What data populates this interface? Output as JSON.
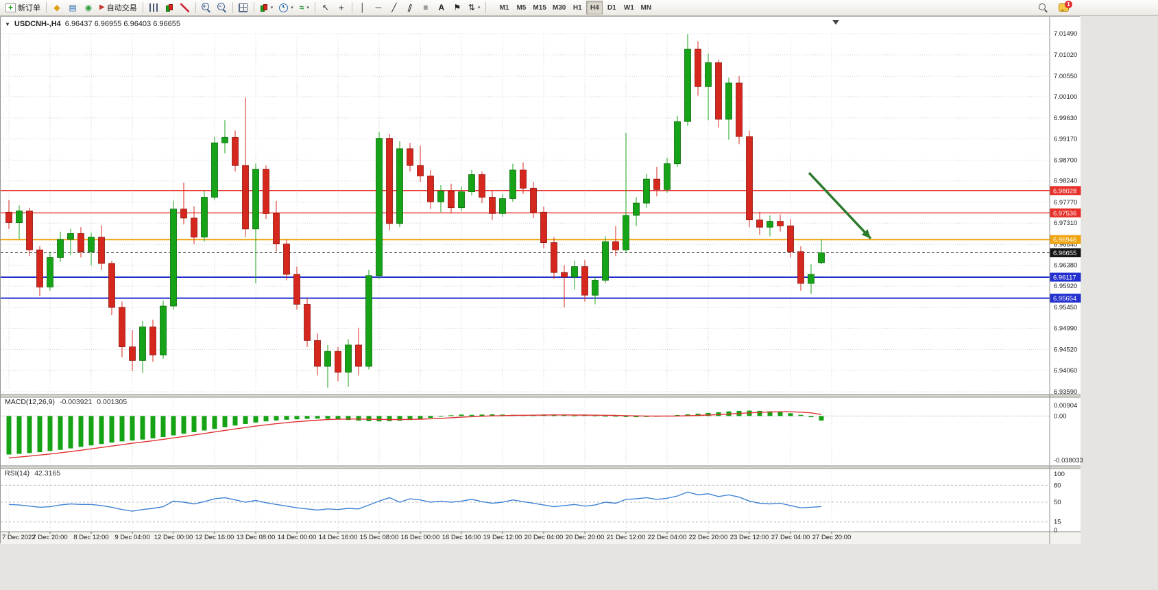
{
  "toolbar": {
    "new_order_label": "新订单",
    "autotrade_label": "自动交易",
    "timeframes": [
      "M1",
      "M5",
      "M15",
      "M30",
      "H1",
      "H4",
      "D1",
      "W1",
      "MN"
    ],
    "active_timeframe": "H4",
    "notification_count": "1"
  },
  "icons": {
    "collapse": "▼",
    "caret": "▾",
    "profile": "◆",
    "market_watch": "▤",
    "navigator": "◉",
    "autotrading": "▶",
    "cursor": "↖",
    "crosshair": "+",
    "vline": "│",
    "hline": "─",
    "trendline": "╱",
    "channel": "∥",
    "fibonacci": "≡",
    "text": "A",
    "label": "⚑",
    "arrows": "⇅",
    "indicators": "≈",
    "zoom_in": "+",
    "zoom_out": "−",
    "new_order_plus": "+"
  },
  "chart": {
    "title": "USDCNH-,H4",
    "ohlc_text": "6.96437 6.96955 6.96403 6.96655",
    "price_scale": [
      "7.01490",
      "7.01020",
      "7.00550",
      "7.00100",
      "6.99630",
      "6.99170",
      "6.98700",
      "6.98240",
      "6.97770",
      "6.97310",
      "6.96840",
      "6.96380",
      "6.95920",
      "6.95450",
      "6.94990",
      "6.94520",
      "6.94060",
      "6.93590"
    ],
    "levels": [
      {
        "label": "6.98028",
        "value": 6.98028,
        "color": "#e8302a",
        "width": 1.4,
        "style": "solid"
      },
      {
        "label": "6.97536",
        "value": 6.97536,
        "color": "#e8302a",
        "width": 1.4,
        "style": "solid"
      },
      {
        "label": "6.96946",
        "value": 6.96946,
        "color": "#efa30d",
        "width": 2,
        "style": "solid"
      },
      {
        "label": "6.96655",
        "value": 6.96655,
        "color": "#151515",
        "width": 1,
        "style": "dashed"
      },
      {
        "label": "6.96117",
        "value": 6.96117,
        "color": "#2330cf",
        "width": 2,
        "style": "solid"
      },
      {
        "label": "6.95654",
        "value": 6.95654,
        "color": "#2330cf",
        "width": 2,
        "style": "solid"
      }
    ],
    "colors": {
      "up": "#17a317",
      "up_edge": "#0b6b0b",
      "down": "#d5271d",
      "down_edge": "#8d170f",
      "grid": "#d6d6d6",
      "axis_text": "#1c1c1c"
    },
    "annotation": {
      "type": "arrow",
      "x1_candle": 77.8,
      "price1": 6.9842,
      "x2_candle": 83.8,
      "price2": 6.9697,
      "color": "#2c7a2c"
    }
  },
  "chart_data": {
    "type": "candlestick",
    "symbol": "USDCNH-",
    "period": "H4",
    "ylim": [
      6.9359,
      7.0149
    ],
    "label_every": 4,
    "time_labels": [
      "7 Dec 2022",
      "7 Dec 20:00",
      "8 Dec 12:00",
      "9 Dec 04:00",
      "12 Dec 00:00",
      "12 Dec 16:00",
      "13 Dec 08:00",
      "14 Dec 00:00",
      "14 Dec 16:00",
      "15 Dec 08:00",
      "16 Dec 00:00",
      "16 Dec 16:00",
      "19 Dec 12:00",
      "20 Dec 04:00",
      "20 Dec 20:00",
      "21 Dec 12:00",
      "22 Dec 04:00",
      "22 Dec 20:00",
      "23 Dec 12:00",
      "27 Dec 04:00",
      "27 Dec 20:00"
    ],
    "candles": [
      [
        6.9755,
        6.9782,
        6.9718,
        6.9732
      ],
      [
        6.9732,
        6.977,
        6.9696,
        6.9758
      ],
      [
        6.9758,
        6.9765,
        6.9658,
        6.9672
      ],
      [
        6.9672,
        6.968,
        6.957,
        6.959
      ],
      [
        6.959,
        6.9668,
        6.9582,
        6.9655
      ],
      [
        6.9655,
        6.9712,
        6.9645,
        6.9695
      ],
      [
        6.9695,
        6.9718,
        6.966,
        6.9708
      ],
      [
        6.9708,
        6.9722,
        6.9655,
        6.9668
      ],
      [
        6.9668,
        6.971,
        6.9638,
        6.97
      ],
      [
        6.97,
        6.9726,
        6.9628,
        6.9642
      ],
      [
        6.9642,
        6.9648,
        6.9528,
        6.9545
      ],
      [
        6.9545,
        6.9558,
        6.9435,
        6.9458
      ],
      [
        6.9458,
        6.9495,
        6.9405,
        6.9428
      ],
      [
        6.9428,
        6.9515,
        6.94,
        6.9502
      ],
      [
        6.9502,
        6.9518,
        6.9425,
        6.944
      ],
      [
        6.944,
        6.956,
        6.9432,
        6.9548
      ],
      [
        6.9548,
        6.978,
        6.954,
        6.9762
      ],
      [
        6.9762,
        6.982,
        6.9728,
        6.9742
      ],
      [
        6.9742,
        6.9768,
        6.9685,
        6.97
      ],
      [
        6.97,
        6.9802,
        6.969,
        6.9788
      ],
      [
        6.9788,
        6.9922,
        6.9782,
        6.9908
      ],
      [
        6.9908,
        6.9958,
        6.9885,
        6.992
      ],
      [
        6.992,
        6.9935,
        6.9845,
        6.9858
      ],
      [
        6.9858,
        7.0008,
        6.97,
        6.9718
      ],
      [
        6.9718,
        6.9862,
        6.9598,
        6.985
      ],
      [
        6.985,
        6.9858,
        6.974,
        6.9752
      ],
      [
        6.9752,
        6.978,
        6.9668,
        6.9685
      ],
      [
        6.9685,
        6.9695,
        6.9605,
        6.9618
      ],
      [
        6.9618,
        6.9635,
        6.954,
        6.9552
      ],
      [
        6.9552,
        6.9565,
        6.9458,
        6.9472
      ],
      [
        6.9472,
        6.9488,
        6.9395,
        6.9415
      ],
      [
        6.9415,
        6.9462,
        6.9368,
        6.9448
      ],
      [
        6.9448,
        6.9458,
        6.9382,
        6.9402
      ],
      [
        6.9402,
        6.9475,
        6.937,
        6.9462
      ],
      [
        6.9462,
        6.95,
        6.9395,
        6.9415
      ],
      [
        6.9415,
        6.9628,
        6.9408,
        6.9615
      ],
      [
        6.9615,
        6.9932,
        6.9608,
        6.9918
      ],
      [
        6.9918,
        6.9928,
        6.9715,
        6.973
      ],
      [
        6.973,
        6.9912,
        6.9722,
        6.9895
      ],
      [
        6.9895,
        6.9908,
        6.9845,
        6.9858
      ],
      [
        6.9858,
        6.9902,
        6.9822,
        6.9835
      ],
      [
        6.9835,
        6.9848,
        6.9762,
        6.9778
      ],
      [
        6.9778,
        6.9815,
        6.9755,
        6.9802
      ],
      [
        6.9802,
        6.9818,
        6.9752,
        6.9765
      ],
      [
        6.9765,
        6.9812,
        6.9758,
        6.98
      ],
      [
        6.98,
        6.9848,
        6.9792,
        6.9838
      ],
      [
        6.9838,
        6.9845,
        6.9775,
        6.9788
      ],
      [
        6.9788,
        6.9802,
        6.9738,
        6.9752
      ],
      [
        6.9752,
        6.9795,
        6.9745,
        6.9785
      ],
      [
        6.9785,
        6.9862,
        6.9778,
        6.9848
      ],
      [
        6.9848,
        6.9865,
        6.9795,
        6.9808
      ],
      [
        6.9808,
        6.9822,
        6.9742,
        6.9755
      ],
      [
        6.9755,
        6.9768,
        6.9675,
        6.9688
      ],
      [
        6.9688,
        6.97,
        6.9608,
        6.9622
      ],
      [
        6.9622,
        6.9638,
        6.9545,
        6.9612
      ],
      [
        6.9612,
        6.9648,
        6.9585,
        6.9635
      ],
      [
        6.9635,
        6.965,
        6.9558,
        6.9572
      ],
      [
        6.9572,
        6.9612,
        6.9552,
        6.9605
      ],
      [
        6.9605,
        6.9702,
        6.9598,
        6.969
      ],
      [
        6.969,
        6.9725,
        6.9658,
        6.9672
      ],
      [
        6.9672,
        6.993,
        6.9665,
        6.9748
      ],
      [
        6.9748,
        6.9788,
        6.9725,
        6.9775
      ],
      [
        6.9775,
        6.984,
        6.9765,
        6.9828
      ],
      [
        6.9828,
        6.9855,
        6.979,
        6.9805
      ],
      [
        6.9805,
        6.9875,
        6.9798,
        6.9862
      ],
      [
        6.9862,
        6.9968,
        6.9855,
        6.9955
      ],
      [
        6.9955,
        7.0148,
        6.9945,
        7.0115
      ],
      [
        7.0115,
        7.0132,
        7.0012,
        7.0032
      ],
      [
        7.0032,
        7.0105,
        6.9958,
        7.0085
      ],
      [
        7.0085,
        7.0092,
        6.9942,
        6.996
      ],
      [
        6.996,
        7.0052,
        6.9915,
        7.004
      ],
      [
        7.004,
        7.0055,
        6.9905,
        6.9922
      ],
      [
        6.9922,
        6.9935,
        6.9722,
        6.9738
      ],
      [
        6.9738,
        6.9756,
        6.9705,
        6.9722
      ],
      [
        6.9722,
        6.9748,
        6.9702,
        6.9735
      ],
      [
        6.9735,
        6.975,
        6.9712,
        6.9725
      ],
      [
        6.9725,
        6.974,
        6.9655,
        6.9668
      ],
      [
        6.9668,
        6.968,
        6.9582,
        6.9598
      ],
      [
        6.9598,
        6.964,
        6.9575,
        6.9618
      ],
      [
        6.96437,
        6.96955,
        6.96403,
        6.96655
      ]
    ]
  },
  "indicators": {
    "macd": {
      "name": "MACD(12,26,9)",
      "value": "-0.003921",
      "signal_value": "0.001305",
      "scale": [
        "0.00904",
        "0.00",
        "-0.038033"
      ],
      "range": [
        -0.038033,
        0.00904
      ],
      "histogram_color": "#15a315",
      "signal_color": "#e03131",
      "histogram": [
        -0.033,
        -0.0325,
        -0.0318,
        -0.031,
        -0.03,
        -0.029,
        -0.0278,
        -0.0265,
        -0.0252,
        -0.024,
        -0.0228,
        -0.0218,
        -0.021,
        -0.0202,
        -0.0192,
        -0.018,
        -0.0166,
        -0.0152,
        -0.0138,
        -0.0124,
        -0.011,
        -0.0096,
        -0.0082,
        -0.0068,
        -0.0056,
        -0.0046,
        -0.0038,
        -0.0032,
        -0.0028,
        -0.0024,
        -0.0022,
        -0.0024,
        -0.0028,
        -0.0034,
        -0.004,
        -0.0044,
        -0.0046,
        -0.0044,
        -0.004,
        -0.0034,
        -0.0026,
        -0.0016,
        -0.0006,
        0.0006,
        0.0012,
        0.001,
        0.0012,
        0.0014,
        0.0012,
        0.001,
        0.0008,
        0.001,
        0.0012,
        0.001,
        0.0006,
        0.0004,
        0.0006,
        0.0004,
        0.0,
        -0.0004,
        -0.0008,
        -0.001,
        -0.0008,
        -0.0004,
        0.0002,
        0.0008,
        0.0014,
        0.002,
        0.0026,
        0.0032,
        0.004,
        0.0044,
        0.0046,
        0.0044,
        0.004,
        0.0034,
        0.0024,
        0.001,
        -0.001,
        -0.0039
      ],
      "signal": [
        -0.036,
        -0.0352,
        -0.0344,
        -0.0335,
        -0.0326,
        -0.0316,
        -0.0305,
        -0.0294,
        -0.0282,
        -0.027,
        -0.0258,
        -0.0246,
        -0.0234,
        -0.0223,
        -0.0212,
        -0.02,
        -0.0188,
        -0.0176,
        -0.0163,
        -0.015,
        -0.0137,
        -0.0124,
        -0.0111,
        -0.0099,
        -0.0087,
        -0.0076,
        -0.0066,
        -0.0057,
        -0.0049,
        -0.0042,
        -0.0036,
        -0.0031,
        -0.0028,
        -0.0026,
        -0.0026,
        -0.0027,
        -0.0029,
        -0.003,
        -0.003,
        -0.0029,
        -0.0027,
        -0.0024,
        -0.002,
        -0.0015,
        -0.001,
        -0.0006,
        -0.0002,
        0.0001,
        0.0003,
        0.0005,
        0.0006,
        0.0007,
        0.0008,
        0.0009,
        0.0009,
        0.0008,
        0.0008,
        0.0007,
        0.0006,
        0.0005,
        0.0003,
        0.0001,
        0.0,
        -0.0001,
        -0.0001,
        0.0,
        0.0002,
        0.0005,
        0.0008,
        0.0012,
        0.0017,
        0.0022,
        0.0027,
        0.0031,
        0.0034,
        0.0036,
        0.0036,
        0.0033,
        0.0027,
        0.0013
      ]
    },
    "rsi": {
      "name": "RSI(14)",
      "value": "42.3165",
      "scale": [
        "100",
        "80",
        "50",
        "15",
        "0"
      ],
      "levels": [
        80,
        50,
        15
      ],
      "range": [
        0,
        100
      ],
      "color": "#3e82d2",
      "values": [
        46,
        45,
        43,
        41,
        42,
        45,
        47,
        46,
        46,
        44,
        41,
        37,
        34,
        37,
        39,
        42,
        52,
        50,
        47,
        51,
        56,
        58,
        54,
        50,
        53,
        49,
        46,
        43,
        40,
        38,
        36,
        38,
        37,
        39,
        38,
        45,
        52,
        58,
        50,
        56,
        54,
        50,
        52,
        50,
        52,
        55,
        51,
        48,
        50,
        54,
        51,
        48,
        45,
        42,
        44,
        46,
        43,
        45,
        50,
        48,
        55,
        56,
        58,
        55,
        57,
        61,
        68,
        63,
        65,
        60,
        63,
        59,
        52,
        48,
        47,
        48,
        44,
        40,
        41,
        42.3
      ]
    }
  }
}
